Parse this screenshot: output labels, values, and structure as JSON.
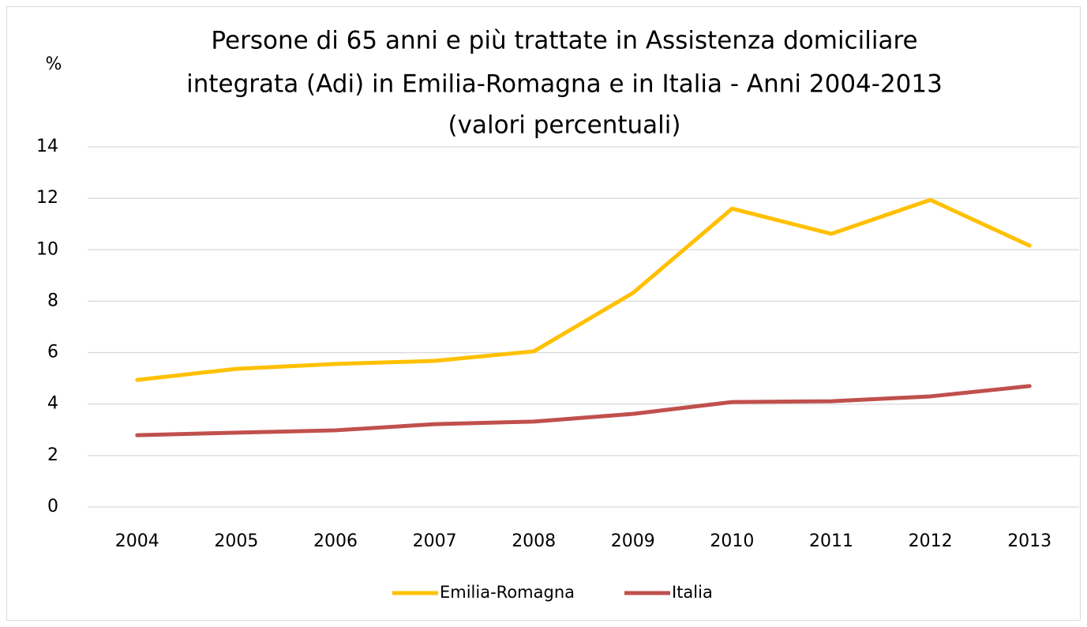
{
  "chart_data": {
    "type": "line",
    "title": [
      "Persone di 65 anni e più trattate in Assistenza domiciliare",
      "integrata (Adi) in Emilia-Romagna e in Italia - Anni 2004-2013",
      "(valori percentuali)"
    ],
    "y_label": "%",
    "categories": [
      "2004",
      "2005",
      "2006",
      "2007",
      "2008",
      "2009",
      "2010",
      "2011",
      "2012",
      "2013"
    ],
    "series": [
      {
        "name": "Emilia-Romagna",
        "color": "#FFC000",
        "values": [
          4.94,
          5.37,
          5.56,
          5.68,
          6.05,
          8.32,
          11.6,
          10.62,
          11.94,
          10.16
        ]
      },
      {
        "name": "Italia",
        "color": "#C0504D",
        "values": [
          2.79,
          2.89,
          2.98,
          3.22,
          3.32,
          3.62,
          4.08,
          4.11,
          4.3,
          4.7
        ]
      }
    ],
    "ylim": [
      0,
      14
    ],
    "yticks": [
      0,
      2,
      4,
      6,
      8,
      10,
      12,
      14
    ],
    "grid": true,
    "legend": "bottom"
  }
}
